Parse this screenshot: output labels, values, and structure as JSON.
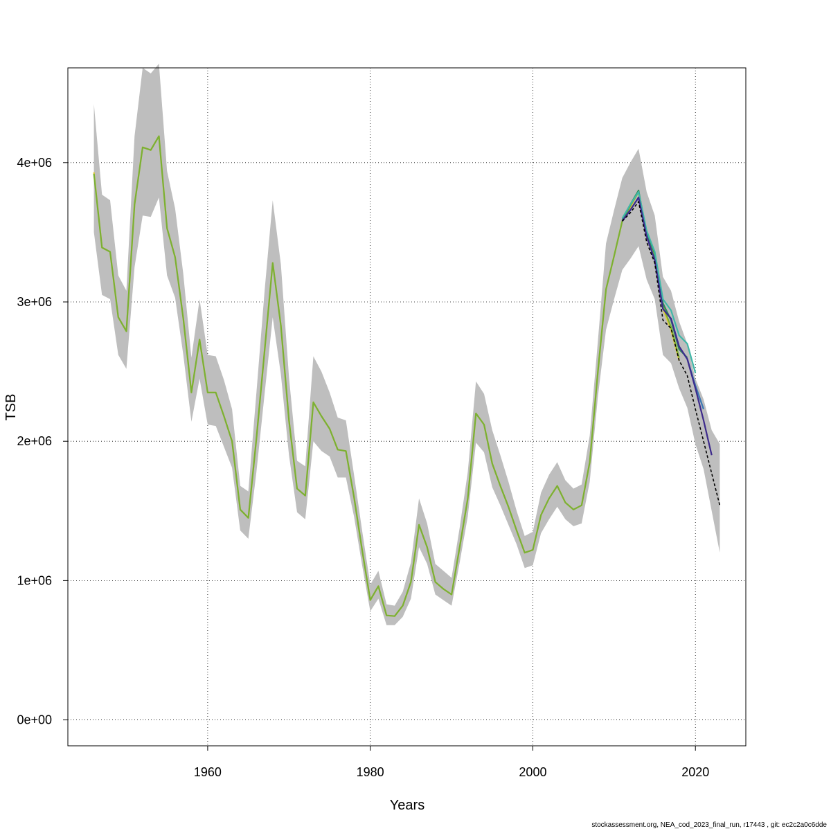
{
  "chart_data": {
    "type": "line",
    "title": "",
    "xlabel": "Years",
    "ylabel": "TSB",
    "xlim": [
      1942.8,
      2026.2
    ],
    "ylim": [
      -186000,
      4680000
    ],
    "x_ticks": [
      1960,
      1980,
      2000,
      2020
    ],
    "x_tick_labels": [
      "1960",
      "1980",
      "2000",
      "2020"
    ],
    "y_ticks": [
      0,
      1000000,
      2000000,
      3000000,
      4000000
    ],
    "y_tick_labels": [
      "0e+00",
      "1e+06",
      "2e+06",
      "3e+06",
      "4e+06"
    ],
    "grid": true,
    "band": {
      "x": [
        1946,
        1947,
        1948,
        1949,
        1950,
        1951,
        1952,
        1953,
        1954,
        1955,
        1956,
        1957,
        1958,
        1959,
        1960,
        1961,
        1962,
        1963,
        1964,
        1965,
        1966,
        1967,
        1968,
        1969,
        1970,
        1971,
        1972,
        1973,
        1974,
        1975,
        1976,
        1977,
        1978,
        1979,
        1980,
        1981,
        1982,
        1983,
        1984,
        1985,
        1986,
        1987,
        1988,
        1989,
        1990,
        1991,
        1992,
        1993,
        1994,
        1995,
        1996,
        1997,
        1998,
        1999,
        2000,
        2001,
        2002,
        2003,
        2004,
        2005,
        2006,
        2007,
        2008,
        2009,
        2010,
        2011,
        2012,
        2013,
        2014,
        2015,
        2016,
        2017,
        2018,
        2019,
        2020,
        2021,
        2022,
        2023
      ],
      "lower": [
        3500000,
        3050000,
        3020000,
        2620000,
        2520000,
        3250000,
        3620000,
        3610000,
        3750000,
        3190000,
        3030000,
        2620000,
        2140000,
        2450000,
        2120000,
        2110000,
        1960000,
        1810000,
        1360000,
        1300000,
        1780000,
        2340000,
        2890000,
        2480000,
        1900000,
        1490000,
        1440000,
        2000000,
        1930000,
        1890000,
        1740000,
        1740000,
        1460000,
        1110000,
        780000,
        870000,
        680000,
        680000,
        740000,
        870000,
        1240000,
        1120000,
        900000,
        860000,
        820000,
        1130000,
        1460000,
        1990000,
        1920000,
        1670000,
        1540000,
        1400000,
        1260000,
        1090000,
        1110000,
        1340000,
        1440000,
        1530000,
        1440000,
        1390000,
        1410000,
        1710000,
        2320000,
        2800000,
        3020000,
        3230000,
        3310000,
        3400000,
        3160000,
        3020000,
        2620000,
        2560000,
        2380000,
        2240000,
        1980000,
        1800000,
        1500000,
        1200000
      ],
      "upper": [
        4420000,
        3770000,
        3730000,
        3190000,
        3080000,
        4190000,
        4680000,
        4640000,
        4710000,
        3940000,
        3670000,
        3200000,
        2600000,
        3020000,
        2620000,
        2610000,
        2440000,
        2230000,
        1680000,
        1640000,
        2350000,
        3080000,
        3730000,
        3270000,
        2460000,
        1860000,
        1820000,
        2610000,
        2500000,
        2350000,
        2170000,
        2150000,
        1760000,
        1360000,
        970000,
        1070000,
        830000,
        820000,
        920000,
        1130000,
        1590000,
        1410000,
        1120000,
        1070000,
        1020000,
        1380000,
        1780000,
        2430000,
        2340000,
        2080000,
        1900000,
        1710000,
        1500000,
        1320000,
        1350000,
        1630000,
        1760000,
        1850000,
        1720000,
        1660000,
        1690000,
        2040000,
        2720000,
        3420000,
        3660000,
        3890000,
        4000000,
        4100000,
        3790000,
        3620000,
        3180000,
        3080000,
        2860000,
        2700000,
        2450000,
        2300000,
        2080000,
        1980000
      ]
    },
    "series": [
      {
        "color": "#e6c93a",
        "dash": false,
        "points": [
          [
            1946,
            3930000
          ],
          [
            1947,
            3390000
          ],
          [
            1948,
            3360000
          ],
          [
            1949,
            2890000
          ],
          [
            1950,
            2790000
          ],
          [
            1951,
            3700000
          ],
          [
            1952,
            4110000
          ],
          [
            1953,
            4090000
          ],
          [
            1954,
            4190000
          ],
          [
            1955,
            3530000
          ],
          [
            1956,
            3320000
          ],
          [
            1957,
            2880000
          ],
          [
            1958,
            2350000
          ],
          [
            1959,
            2730000
          ],
          [
            1960,
            2350000
          ],
          [
            1961,
            2350000
          ],
          [
            1962,
            2180000
          ],
          [
            1963,
            2000000
          ],
          [
            1964,
            1510000
          ],
          [
            1965,
            1450000
          ],
          [
            1966,
            2020000
          ],
          [
            1967,
            2650000
          ],
          [
            1968,
            3280000
          ],
          [
            1969,
            2830000
          ],
          [
            1970,
            2150000
          ],
          [
            1971,
            1660000
          ],
          [
            1972,
            1610000
          ],
          [
            1973,
            2280000
          ],
          [
            1974,
            2180000
          ],
          [
            1975,
            2090000
          ],
          [
            1976,
            1940000
          ],
          [
            1977,
            1930000
          ],
          [
            1978,
            1600000
          ],
          [
            1979,
            1220000
          ],
          [
            1980,
            860000
          ],
          [
            1981,
            960000
          ],
          [
            1982,
            750000
          ],
          [
            1983,
            745000
          ],
          [
            1984,
            820000
          ],
          [
            1985,
            990000
          ],
          [
            1986,
            1400000
          ],
          [
            1987,
            1240000
          ],
          [
            1988,
            990000
          ],
          [
            1989,
            940000
          ],
          [
            1990,
            900000
          ],
          [
            1991,
            1240000
          ],
          [
            1992,
            1590000
          ],
          [
            1993,
            2200000
          ],
          [
            1994,
            2120000
          ],
          [
            1995,
            1840000
          ],
          [
            1996,
            1680000
          ],
          [
            1997,
            1530000
          ],
          [
            1998,
            1360000
          ],
          [
            1999,
            1200000
          ],
          [
            2000,
            1220000
          ],
          [
            2001,
            1470000
          ],
          [
            2002,
            1590000
          ],
          [
            2003,
            1680000
          ],
          [
            2004,
            1560000
          ],
          [
            2005,
            1510000
          ],
          [
            2006,
            1540000
          ],
          [
            2007,
            1850000
          ],
          [
            2008,
            2500000
          ],
          [
            2009,
            3090000
          ],
          [
            2010,
            3330000
          ],
          [
            2011,
            3580000
          ],
          [
            2012,
            3680000
          ],
          [
            2013,
            3790000
          ],
          [
            2014,
            3470000
          ],
          [
            2015,
            3310000
          ],
          [
            2016,
            2950000
          ],
          [
            2017,
            2800000
          ],
          [
            2018,
            2580000
          ]
        ]
      },
      {
        "color": "#7ab034",
        "dash": false,
        "points": [
          [
            1946,
            3920000
          ],
          [
            1947,
            3390000
          ],
          [
            1948,
            3360000
          ],
          [
            1949,
            2890000
          ],
          [
            1950,
            2790000
          ],
          [
            1951,
            3700000
          ],
          [
            1952,
            4110000
          ],
          [
            1953,
            4090000
          ],
          [
            1954,
            4190000
          ],
          [
            1955,
            3530000
          ],
          [
            1956,
            3320000
          ],
          [
            1957,
            2880000
          ],
          [
            1958,
            2350000
          ],
          [
            1959,
            2730000
          ],
          [
            1960,
            2350000
          ],
          [
            1961,
            2350000
          ],
          [
            1962,
            2180000
          ],
          [
            1963,
            2000000
          ],
          [
            1964,
            1510000
          ],
          [
            1965,
            1450000
          ],
          [
            1966,
            2020000
          ],
          [
            1967,
            2650000
          ],
          [
            1968,
            3280000
          ],
          [
            1969,
            2830000
          ],
          [
            1970,
            2150000
          ],
          [
            1971,
            1660000
          ],
          [
            1972,
            1610000
          ],
          [
            1973,
            2280000
          ],
          [
            1974,
            2180000
          ],
          [
            1975,
            2090000
          ],
          [
            1976,
            1940000
          ],
          [
            1977,
            1930000
          ],
          [
            1978,
            1600000
          ],
          [
            1979,
            1220000
          ],
          [
            1980,
            860000
          ],
          [
            1981,
            960000
          ],
          [
            1982,
            750000
          ],
          [
            1983,
            745000
          ],
          [
            1984,
            820000
          ],
          [
            1985,
            990000
          ],
          [
            1986,
            1400000
          ],
          [
            1987,
            1240000
          ],
          [
            1988,
            990000
          ],
          [
            1989,
            940000
          ],
          [
            1990,
            900000
          ],
          [
            1991,
            1240000
          ],
          [
            1992,
            1590000
          ],
          [
            1993,
            2200000
          ],
          [
            1994,
            2120000
          ],
          [
            1995,
            1840000
          ],
          [
            1996,
            1680000
          ],
          [
            1997,
            1530000
          ],
          [
            1998,
            1360000
          ],
          [
            1999,
            1200000
          ],
          [
            2000,
            1220000
          ],
          [
            2001,
            1470000
          ],
          [
            2002,
            1590000
          ],
          [
            2003,
            1680000
          ],
          [
            2004,
            1560000
          ],
          [
            2005,
            1510000
          ],
          [
            2006,
            1540000
          ],
          [
            2007,
            1850000
          ],
          [
            2008,
            2500000
          ],
          [
            2009,
            3090000
          ],
          [
            2010,
            3330000
          ],
          [
            2011,
            3580000
          ],
          [
            2012,
            3690000
          ],
          [
            2013,
            3790000
          ],
          [
            2014,
            3480000
          ],
          [
            2015,
            3330000
          ],
          [
            2016,
            2970000
          ],
          [
            2017,
            2820000
          ],
          [
            2018,
            2600000
          ]
        ]
      },
      {
        "color": "#2e8b57",
        "dash": false,
        "points": [
          [
            2011,
            3590000
          ],
          [
            2012,
            3700000
          ],
          [
            2013,
            3800000
          ],
          [
            2014,
            3490000
          ],
          [
            2015,
            3350000
          ],
          [
            2016,
            2990000
          ],
          [
            2017,
            2870000
          ],
          [
            2018,
            2660000
          ],
          [
            2019,
            2600000
          ]
        ]
      },
      {
        "color": "#40b8a8",
        "dash": false,
        "points": [
          [
            2011,
            3600000
          ],
          [
            2012,
            3700000
          ],
          [
            2013,
            3790000
          ],
          [
            2014,
            3510000
          ],
          [
            2015,
            3360000
          ],
          [
            2016,
            3020000
          ],
          [
            2017,
            2940000
          ],
          [
            2018,
            2760000
          ],
          [
            2019,
            2700000
          ],
          [
            2020,
            2490000
          ]
        ]
      },
      {
        "color": "#3c78b4",
        "dash": false,
        "points": [
          [
            2011,
            3580000
          ],
          [
            2012,
            3660000
          ],
          [
            2013,
            3750000
          ],
          [
            2014,
            3470000
          ],
          [
            2015,
            3300000
          ],
          [
            2016,
            2950000
          ],
          [
            2017,
            2880000
          ],
          [
            2018,
            2680000
          ],
          [
            2019,
            2590000
          ],
          [
            2020,
            2400000
          ],
          [
            2021,
            2230000
          ]
        ]
      },
      {
        "color": "#3d2a8c",
        "dash": false,
        "points": [
          [
            2011,
            3580000
          ],
          [
            2012,
            3660000
          ],
          [
            2013,
            3750000
          ],
          [
            2014,
            3470000
          ],
          [
            2015,
            3300000
          ],
          [
            2016,
            2950000
          ],
          [
            2017,
            2880000
          ],
          [
            2018,
            2680000
          ],
          [
            2019,
            2590000
          ],
          [
            2020,
            2380000
          ],
          [
            2021,
            2150000
          ],
          [
            2022,
            1900000
          ]
        ]
      },
      {
        "color": "#000000",
        "dash": true,
        "points": [
          [
            2011,
            3580000
          ],
          [
            2012,
            3640000
          ],
          [
            2013,
            3720000
          ],
          [
            2014,
            3430000
          ],
          [
            2015,
            3280000
          ],
          [
            2016,
            2870000
          ],
          [
            2017,
            2810000
          ],
          [
            2018,
            2580000
          ],
          [
            2019,
            2470000
          ],
          [
            2020,
            2230000
          ],
          [
            2021,
            2000000
          ],
          [
            2022,
            1770000
          ],
          [
            2023,
            1540000
          ]
        ]
      }
    ]
  },
  "footer": "stockassessment.org, NEA_cod_2023_final_run, r17443 , git: ec2c2a0c6dde"
}
